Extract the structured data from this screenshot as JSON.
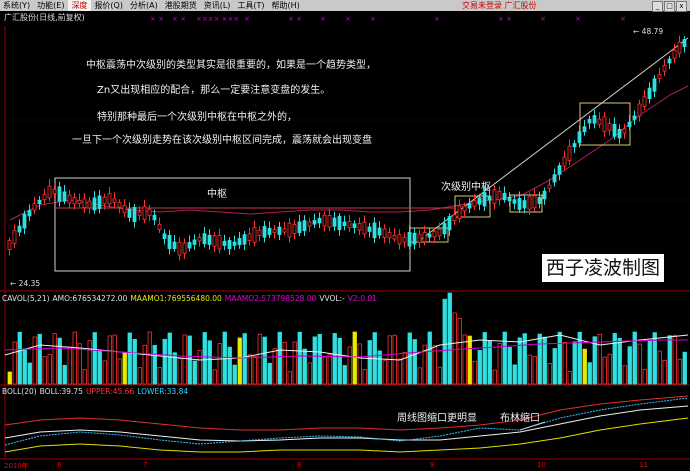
{
  "menu": {
    "items": [
      "系统(Y)",
      "功能(E)",
      "深度",
      "报价(Q)",
      "分析(A)",
      "港股期货",
      "资讯(L)",
      "工具(T)",
      "帮助(H)"
    ],
    "active_index": 2,
    "status": "交易未登录",
    "stock": "广汇股份",
    "win_controls": [
      "_",
      "□",
      "x"
    ]
  },
  "subtitle": "广汇股份(日线,前复权)",
  "price_labels": {
    "high": "48.79",
    "low": "24.35"
  },
  "annotations": {
    "a1": "中枢震荡中次级别的类型其实是很重要的，如果是一个趋势类型，",
    "a2": "Zn又出现相应的配合，那么一定要注意变盘的发生。",
    "a3": "特别那种最后一个次级别中枢在中枢之外的，",
    "a4": "一旦下一个次级别走势在该次级别中枢区间完成，震荡就会出现变盘",
    "zhongshu": "中枢",
    "ciji": "次级别中枢",
    "zhoutu": "周线图缩口更明显",
    "bulin": "布林缩口"
  },
  "watermark": "西子凌波制图",
  "vol_legend": {
    "name": "CAVOL(5,21)",
    "amo": "AMO:676534272.00",
    "maamo1": "MAAMO1:769556480.00",
    "maamo2": "MAAMO2:573798528.00",
    "vvol": "VVOL:-",
    "v2": "V2:0.01"
  },
  "boll_legend": {
    "name": "BOLL(20)",
    "boll": "BOLL:39.75",
    "upper": "UPPER:45.66",
    "lower": "LOWER:33.84"
  },
  "dates": [
    "2010年",
    "6",
    "7",
    "8",
    "9",
    "10",
    "11"
  ],
  "colors": {
    "up": "#ff3030",
    "down": "#30e0e0",
    "accent": "#e000e0",
    "box": "#d0d0d0",
    "yellow": "#e8e800"
  }
}
